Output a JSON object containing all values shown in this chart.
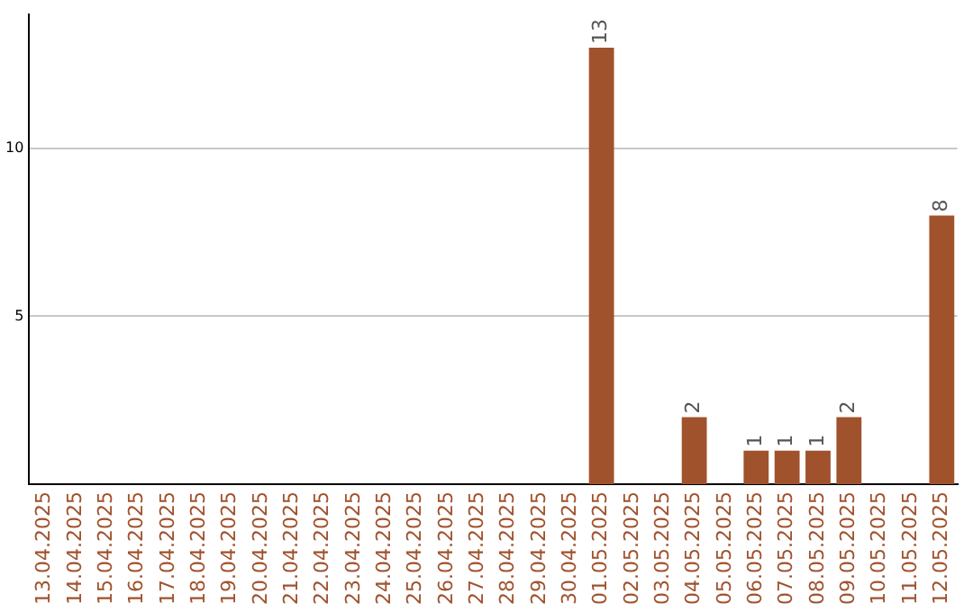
{
  "chart_data": {
    "type": "bar",
    "categories": [
      "13.04.2025",
      "14.04.2025",
      "15.04.2025",
      "16.04.2025",
      "17.04.2025",
      "18.04.2025",
      "19.04.2025",
      "20.04.2025",
      "21.04.2025",
      "22.04.2025",
      "23.04.2025",
      "24.04.2025",
      "25.04.2025",
      "26.04.2025",
      "27.04.2025",
      "28.04.2025",
      "29.04.2025",
      "30.04.2025",
      "01.05.2025",
      "02.05.2025",
      "03.05.2025",
      "04.05.2025",
      "05.05.2025",
      "06.05.2025",
      "07.05.2025",
      "08.05.2025",
      "09.05.2025",
      "10.05.2025",
      "11.05.2025",
      "12.05.2025"
    ],
    "values": [
      0,
      0,
      0,
      0,
      0,
      0,
      0,
      0,
      0,
      0,
      0,
      0,
      0,
      0,
      0,
      0,
      0,
      0,
      13,
      0,
      0,
      2,
      0,
      1,
      1,
      1,
      2,
      0,
      0,
      8
    ],
    "value_labels": [
      null,
      null,
      null,
      null,
      null,
      null,
      null,
      null,
      null,
      null,
      null,
      null,
      null,
      null,
      null,
      null,
      null,
      null,
      "13",
      null,
      null,
      "2",
      null,
      "1",
      "1",
      "1",
      "2",
      null,
      null,
      "8"
    ],
    "color": "#a0522d",
    "ylim": [
      0,
      14
    ],
    "yticks": [
      5,
      10
    ],
    "grid": "y",
    "legend": false
  }
}
